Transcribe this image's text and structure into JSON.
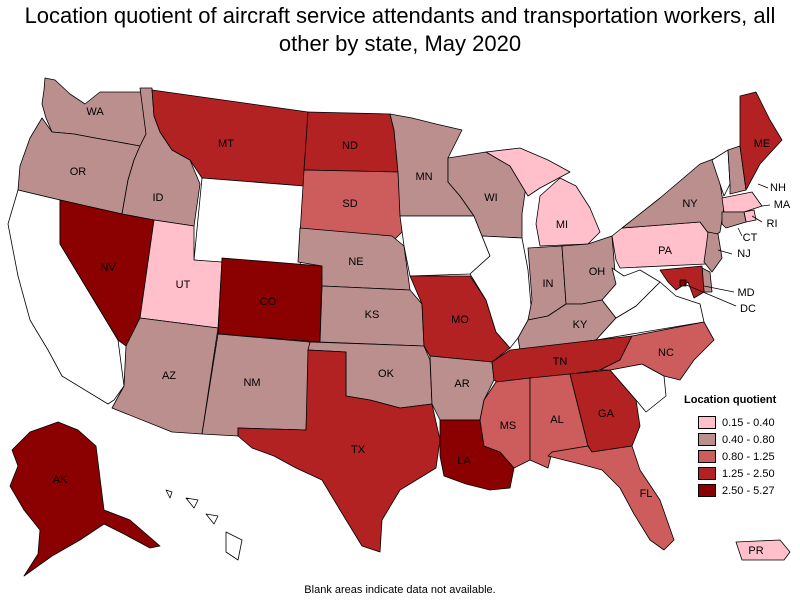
{
  "title": "Location quotient of aircraft service attendants and transportation workers, all other by state, May 2020",
  "footnote": "Blank areas indicate data not available.",
  "colors": {
    "no_data": "#ffffff",
    "c1": "#ffc0cb",
    "c2": "#bc8f8f",
    "c3": "#cd5c5c",
    "c4": "#b22222",
    "c5": "#8b0000"
  },
  "legend": {
    "title": "Location quotient",
    "items": [
      {
        "label": "0.15 - 0.40",
        "color": "#ffc0cb"
      },
      {
        "label": "0.40 - 0.80",
        "color": "#bc8f8f"
      },
      {
        "label": "0.80 - 1.25",
        "color": "#cd5c5c"
      },
      {
        "label": "1.25 - 2.50",
        "color": "#b22222"
      },
      {
        "label": "2.50 - 5.27",
        "color": "#8b0000"
      }
    ]
  },
  "states": {
    "WA": {
      "label": "WA",
      "class": "c2"
    },
    "OR": {
      "label": "OR",
      "class": "c2"
    },
    "CA": {
      "label": "",
      "class": "no_data"
    },
    "ID": {
      "label": "ID",
      "class": "c2"
    },
    "NV": {
      "label": "NV",
      "class": "c5"
    },
    "MT": {
      "label": "MT",
      "class": "c4"
    },
    "WY": {
      "label": "",
      "class": "no_data"
    },
    "UT": {
      "label": "UT",
      "class": "c1"
    },
    "AZ": {
      "label": "AZ",
      "class": "c2"
    },
    "CO": {
      "label": "CO",
      "class": "c5"
    },
    "NM": {
      "label": "NM",
      "class": "c2"
    },
    "ND": {
      "label": "ND",
      "class": "c4"
    },
    "SD": {
      "label": "SD",
      "class": "c3"
    },
    "NE": {
      "label": "NE",
      "class": "c2"
    },
    "KS": {
      "label": "KS",
      "class": "c2"
    },
    "OK": {
      "label": "OK",
      "class": "c2"
    },
    "TX": {
      "label": "TX",
      "class": "c4"
    },
    "MN": {
      "label": "MN",
      "class": "c2"
    },
    "IA": {
      "label": "",
      "class": "no_data"
    },
    "MO": {
      "label": "MO",
      "class": "c4"
    },
    "AR": {
      "label": "AR",
      "class": "c2"
    },
    "LA": {
      "label": "LA",
      "class": "c5"
    },
    "WI": {
      "label": "WI",
      "class": "c2"
    },
    "IL": {
      "label": "",
      "class": "no_data"
    },
    "MI": {
      "label": "MI",
      "class": "c1"
    },
    "IN": {
      "label": "IN",
      "class": "c2"
    },
    "OH": {
      "label": "OH",
      "class": "c2"
    },
    "KY": {
      "label": "KY",
      "class": "c2"
    },
    "TN": {
      "label": "TN",
      "class": "c4"
    },
    "MS": {
      "label": "MS",
      "class": "c3"
    },
    "AL": {
      "label": "AL",
      "class": "c3"
    },
    "GA": {
      "label": "GA",
      "class": "c4"
    },
    "FL": {
      "label": "FL",
      "class": "c3"
    },
    "SC": {
      "label": "",
      "class": "no_data"
    },
    "NC": {
      "label": "NC",
      "class": "c3"
    },
    "VA": {
      "label": "",
      "class": "no_data"
    },
    "WV": {
      "label": "",
      "class": "no_data"
    },
    "PA": {
      "label": "PA",
      "class": "c1"
    },
    "NY": {
      "label": "NY",
      "class": "c2"
    },
    "VT": {
      "label": "",
      "class": "no_data"
    },
    "NH": {
      "label": "NH",
      "class": "c2"
    },
    "ME": {
      "label": "ME",
      "class": "c4"
    },
    "MA": {
      "label": "MA",
      "class": "c1"
    },
    "RI": {
      "label": "RI",
      "class": "c1"
    },
    "CT": {
      "label": "CT",
      "class": "c2"
    },
    "NJ": {
      "label": "NJ",
      "class": "c2"
    },
    "DE": {
      "label": "",
      "class": "c2"
    },
    "MD": {
      "label": "MD",
      "class": "c4"
    },
    "DC": {
      "label": "DC",
      "class": "c5"
    },
    "AK": {
      "label": "AK",
      "class": "c5"
    },
    "HI": {
      "label": "",
      "class": "no_data"
    },
    "PR": {
      "label": "PR",
      "class": "c1"
    }
  }
}
